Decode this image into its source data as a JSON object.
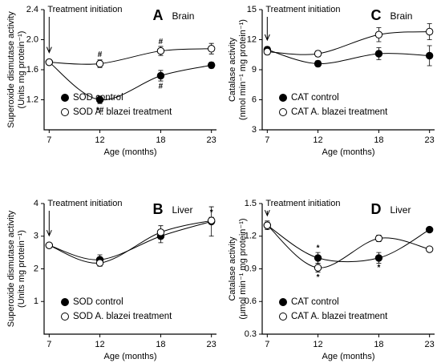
{
  "chart_data": [
    {
      "type": "line",
      "panel_label": "A",
      "subtitle": "Brain",
      "marker_text": "Treatment initiation",
      "ylabel": [
        "Superoxide dismutase  activity",
        "(Units mg protein⁻¹)"
      ],
      "xlabel": "Age (months)",
      "x": [
        7,
        12,
        18,
        23
      ],
      "xlim": [
        6.5,
        23.5
      ],
      "xticks": [
        7,
        12,
        18,
        23
      ],
      "ylim": [
        0.8,
        2.4
      ],
      "yticks": [
        {
          "value": 1.2,
          "label": "1.2"
        },
        {
          "value": 1.6,
          "label": "1.6"
        },
        {
          "value": 2.0,
          "label": "2.0"
        },
        {
          "value": 2.4,
          "label": "2.4"
        }
      ],
      "legend": "lower left",
      "series": [
        {
          "name": "SOD control",
          "color": "#000000",
          "fill": "#000000",
          "values": [
            1.7,
            1.2,
            1.52,
            1.66
          ],
          "errors": [
            0.03,
            0.05,
            0.07,
            0.04
          ]
        },
        {
          "name": "SOD A. blazei treatment",
          "color": "#000000",
          "fill": "#ffffff",
          "values": [
            1.7,
            1.68,
            1.85,
            1.88
          ],
          "errors": [
            0.03,
            0.05,
            0.06,
            0.07
          ]
        }
      ],
      "annotations": [
        {
          "text": "*#",
          "x": 12,
          "y": 1.06
        },
        {
          "text": "#",
          "x": 12,
          "y": 1.8
        },
        {
          "text": "#",
          "x": 18,
          "y": 1.97
        },
        {
          "text": "#",
          "x": 18,
          "y": 1.38
        }
      ]
    },
    {
      "type": "line",
      "panel_label": "C",
      "subtitle": "Brain",
      "marker_text": "Treatment initiation",
      "ylabel": [
        "Catalase activity",
        "(nmol min⁻¹ mg protein⁻¹)"
      ],
      "xlabel": "Age (months)",
      "x": [
        7,
        12,
        18,
        23
      ],
      "xlim": [
        6.5,
        23.5
      ],
      "xticks": [
        7,
        12,
        18,
        23
      ],
      "ylim": [
        3,
        15
      ],
      "yticks": [
        3,
        6,
        9,
        12,
        15
      ],
      "legend": "lower left",
      "series": [
        {
          "name": "CAT control",
          "color": "#000000",
          "fill": "#000000",
          "values": [
            11.0,
            9.6,
            10.6,
            10.4
          ],
          "errors": [
            0.3,
            0.3,
            0.6,
            1.0
          ]
        },
        {
          "name": "CAT A. blazei treatment",
          "color": "#000000",
          "fill": "#ffffff",
          "values": [
            10.8,
            10.6,
            12.5,
            12.8
          ],
          "errors": [
            0.3,
            0.3,
            0.7,
            0.8
          ]
        }
      ],
      "annotations": []
    },
    {
      "type": "line",
      "panel_label": "B",
      "subtitle": "Liver",
      "marker_text": "Treatment initiation",
      "ylabel": [
        "Superoxide dismutase  activity",
        "(Units mg protein⁻¹)"
      ],
      "xlabel": "Age (months)",
      "x": [
        7,
        12,
        18,
        23
      ],
      "xlim": [
        6.5,
        23.5
      ],
      "xticks": [
        7,
        12,
        18,
        23
      ],
      "ylim": [
        0,
        4
      ],
      "yticks": [
        1,
        2,
        3,
        4
      ],
      "legend": "lower left",
      "series": [
        {
          "name": "SOD control",
          "color": "#000000",
          "fill": "#000000",
          "values": [
            2.72,
            2.28,
            3.0,
            3.45
          ],
          "errors": [
            0.05,
            0.15,
            0.2,
            0.45
          ]
        },
        {
          "name": "SOD A. blazei treatment",
          "color": "#000000",
          "fill": "#ffffff",
          "values": [
            2.72,
            2.18,
            3.12,
            3.48
          ],
          "errors": [
            0.05,
            0.1,
            0.2,
            0.1
          ]
        }
      ],
      "annotations": [
        {
          "text": "*",
          "x": 23,
          "y": 3.72
        }
      ]
    },
    {
      "type": "line",
      "panel_label": "D",
      "subtitle": "Liver",
      "marker_text": "Treatment initiation",
      "ylabel": [
        "Catalase activity",
        "(μmol min⁻¹ mg protein⁻¹)"
      ],
      "xlabel": "Age (months)",
      "x": [
        7,
        12,
        18,
        23
      ],
      "xlim": [
        6.5,
        23.5
      ],
      "xticks": [
        7,
        12,
        18,
        23
      ],
      "ylim": [
        0.3,
        1.5
      ],
      "yticks": [
        0.3,
        0.6,
        0.9,
        1.2,
        1.5
      ],
      "legend": "lower left",
      "series": [
        {
          "name": "CAT control",
          "color": "#000000",
          "fill": "#000000",
          "values": [
            1.3,
            1.0,
            1.0,
            1.26
          ],
          "errors": [
            0.04,
            0.05,
            0.05,
            0.02
          ]
        },
        {
          "name": "CAT A. blazei treatment",
          "color": "#000000",
          "fill": "#ffffff",
          "values": [
            1.3,
            0.91,
            1.18,
            1.08
          ],
          "errors": [
            0.03,
            0.04,
            0.03,
            0.02
          ]
        }
      ],
      "annotations": [
        {
          "text": "*",
          "x": 12,
          "y": 1.09
        },
        {
          "text": "*",
          "x": 12,
          "y": 0.82
        },
        {
          "text": "*",
          "x": 18,
          "y": 0.91
        }
      ]
    }
  ]
}
